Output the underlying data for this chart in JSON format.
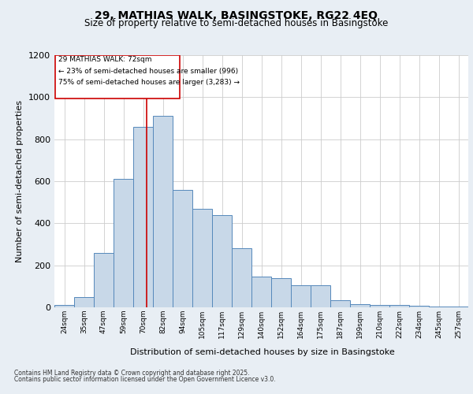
{
  "title1": "29, MATHIAS WALK, BASINGSTOKE, RG22 4EQ",
  "title2": "Size of property relative to semi-detached houses in Basingstoke",
  "xlabel": "Distribution of semi-detached houses by size in Basingstoke",
  "ylabel": "Number of semi-detached properties",
  "footer1": "Contains HM Land Registry data © Crown copyright and database right 2025.",
  "footer2": "Contains public sector information licensed under the Open Government Licence v3.0.",
  "property_size": 72,
  "property_label": "29 MATHIAS WALK: 72sqm",
  "pct_smaller": 23,
  "pct_larger": 75,
  "n_smaller": 996,
  "n_larger": 3283,
  "bar_color": "#c8d8e8",
  "bar_edge_color": "#5588bb",
  "line_color": "#cc0000",
  "box_color": "#cc0000",
  "categories": [
    "24sqm",
    "35sqm",
    "47sqm",
    "59sqm",
    "70sqm",
    "82sqm",
    "94sqm",
    "105sqm",
    "117sqm",
    "129sqm",
    "140sqm",
    "152sqm",
    "164sqm",
    "175sqm",
    "187sqm",
    "199sqm",
    "210sqm",
    "222sqm",
    "234sqm",
    "245sqm",
    "257sqm"
  ],
  "bin_edges": [
    18,
    29.5,
    41,
    52.5,
    64,
    75.5,
    87,
    98.5,
    110,
    121.5,
    133,
    144.5,
    156,
    167.5,
    179,
    190.5,
    202,
    213.5,
    225,
    236.5,
    248,
    259.5
  ],
  "values": [
    10,
    50,
    260,
    610,
    860,
    910,
    560,
    470,
    440,
    280,
    145,
    140,
    105,
    105,
    35,
    15,
    12,
    10,
    8,
    5,
    3
  ],
  "ylim": [
    0,
    1200
  ],
  "yticks": [
    0,
    200,
    400,
    600,
    800,
    1000,
    1200
  ],
  "bg_color": "#e8eef4",
  "plot_bg_color": "#ffffff",
  "grid_color": "#cccccc"
}
